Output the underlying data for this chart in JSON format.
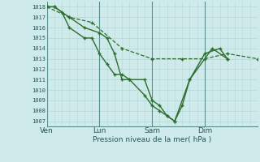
{
  "xlabel": "Pression niveau de la mer( hPa )",
  "background_color": "#ceeaea",
  "grid_color_h": "#b8d8d8",
  "grid_color_v": "#9ababa",
  "line_color": "#2d6e2d",
  "ylim": [
    1006.5,
    1018.5
  ],
  "yticks": [
    1007,
    1008,
    1009,
    1010,
    1011,
    1012,
    1013,
    1014,
    1015,
    1016,
    1017,
    1018
  ],
  "xtick_labels": [
    "Ven",
    "Lun",
    "Sam",
    "Dim"
  ],
  "xtick_positions": [
    0,
    3.5,
    7.0,
    10.5
  ],
  "vlines": [
    0,
    3.5,
    7.0,
    10.5
  ],
  "xmin": 0,
  "xmax": 14.0,
  "series1_x": [
    0.0,
    0.5,
    1.5,
    2.5,
    3.5,
    4.0,
    4.5,
    5.0,
    5.5,
    6.5,
    7.0,
    7.5,
    8.0,
    8.5,
    9.5,
    10.5,
    11.5,
    12.0
  ],
  "series1_y": [
    1018,
    1018,
    1017,
    1016,
    1015.5,
    1015,
    1013.5,
    1011,
    1011,
    1011,
    1009,
    1008.5,
    1007.5,
    1007,
    1011,
    1013.5,
    1014,
    1013
  ],
  "series2_x": [
    0.0,
    0.5,
    1.0,
    1.5,
    2.5,
    3.0,
    3.5,
    4.0,
    4.5,
    5.0,
    5.5,
    6.5,
    7.0,
    7.5,
    8.0,
    8.5,
    9.0,
    9.5,
    11.0,
    12.0
  ],
  "series2_y": [
    1018,
    1018,
    1017.5,
    1016,
    1015,
    1015,
    1013.5,
    1012.5,
    1011.5,
    1011.5,
    1011,
    1009.5,
    1008.5,
    1008,
    1007.5,
    1007,
    1008.5,
    1011,
    1014,
    1013
  ],
  "series3_x": [
    0.0,
    1.5,
    3.0,
    5.0,
    7.0,
    9.0,
    10.5,
    12.0,
    14.0
  ],
  "series3_y": [
    1018,
    1017,
    1016.5,
    1014,
    1013,
    1013,
    1013,
    1013.5,
    1013
  ]
}
